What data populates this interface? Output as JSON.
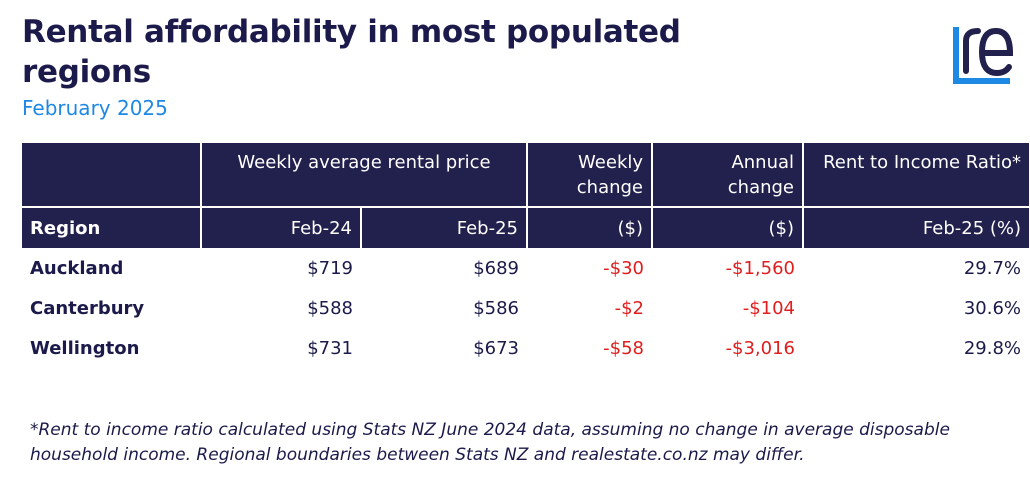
{
  "header": {
    "title": "Rental affordability in most populated regions",
    "subtitle": "February 2025"
  },
  "logo": {
    "name": "realestate-co-nz-logo",
    "colors": {
      "accent": "#1e88e5",
      "dark": "#22204d"
    }
  },
  "table": {
    "group_headers": {
      "weekly_avg": "Weekly average rental price",
      "weekly_change": "Weekly change",
      "annual_change": "Annual change",
      "rent_income": "Rent to Income Ratio*"
    },
    "columns": {
      "region": "Region",
      "feb24": "Feb-24",
      "feb25": "Feb-25",
      "weekly_unit": "($)",
      "annual_unit": "($)",
      "ratio_unit": "Feb-25 (%)"
    },
    "rows": [
      {
        "region": "Auckland",
        "feb24": "$719",
        "feb25": "$689",
        "weekly_change": "-$30",
        "annual_change": "-$1,560",
        "ratio": "29.7%"
      },
      {
        "region": "Canterbury",
        "feb24": "$588",
        "feb25": "$586",
        "weekly_change": "-$2",
        "annual_change": "-$104",
        "ratio": "30.6%"
      },
      {
        "region": "Wellington",
        "feb24": "$731",
        "feb25": "$673",
        "weekly_change": "-$58",
        "annual_change": "-$3,016",
        "ratio": "29.8%"
      }
    ]
  },
  "footnote": "*Rent to income ratio calculated using Stats NZ June 2024 data, assuming no change in average disposable household income. Regional boundaries between Stats NZ and realestate.co.nz may differ.",
  "colors": {
    "navy": "#22204d",
    "blue": "#1e88e5",
    "negative": "#e01e1e"
  }
}
